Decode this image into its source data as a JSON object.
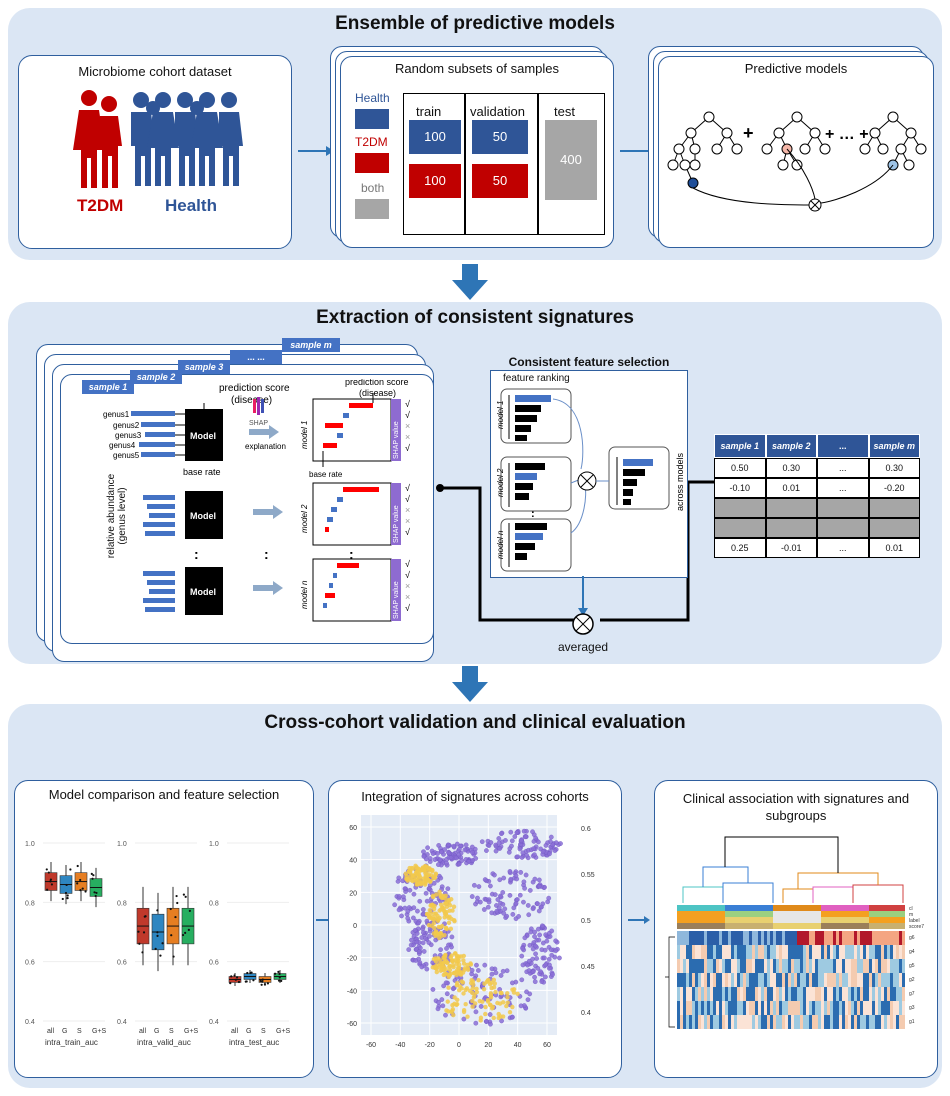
{
  "panel1": {
    "title": "Ensemble of predictive models",
    "dataset_title": "Microbiome cohort dataset",
    "t2dm_label": "T2DM",
    "health_label": "Health",
    "subsets_title": "Random subsets of samples",
    "legend": {
      "health": "Health",
      "t2dm": "T2DM",
      "both": "both"
    },
    "cols": {
      "train": "train",
      "validation": "validation",
      "test": "test"
    },
    "values": {
      "train_health": "100",
      "valid_health": "50",
      "train_t2dm": "100",
      "valid_t2dm": "50",
      "test": "400"
    },
    "models_title": "Predictive models",
    "plus": "+",
    "dots": "+ … +",
    "colors": {
      "t2dm": "#c00000",
      "health": "#2f5597",
      "grey": "#a6a6a6",
      "arrow": "#2e75b6"
    }
  },
  "panel2": {
    "title": "Extraction of consistent signatures",
    "tabs": [
      "sample 1",
      "sample 2",
      "sample 3",
      "... ...",
      "sample m"
    ],
    "y_label_1": "relative abundance",
    "y_label_2": "(genus level)",
    "genera": [
      "genus1",
      "genus2",
      "genus3",
      "genus4",
      "genus5"
    ],
    "base_rate": "base rate",
    "model": "Model",
    "pred_score": "prediction score",
    "disease": "(disease)",
    "shap": "SHAP",
    "explanation": "explanation",
    "model_rows": [
      "model 1",
      "model 2",
      "model n"
    ],
    "shap_value": "SHAP value",
    "marks": [
      "√",
      "√",
      "×",
      "×",
      "√"
    ],
    "vdots": ":",
    "cfs_title": "Consistent feature selection",
    "feature_ranking": "feature ranking",
    "across_models": "across models",
    "averaged": "averaged",
    "table": {
      "headers": [
        "sample 1",
        "sample 2",
        "...",
        "sample m"
      ],
      "rows": [
        [
          "0.50",
          "0.30",
          "...",
          "0.30"
        ],
        [
          "-0.10",
          "0.01",
          "...",
          "-0.20"
        ],
        [
          "",
          "",
          "",
          ""
        ],
        [
          "",
          "",
          "",
          ""
        ],
        [
          "0.25",
          "-0.01",
          "...",
          "0.01"
        ]
      ]
    }
  },
  "panel3": {
    "title": "Cross-cohort validation and clinical evaluation",
    "card1_title": "Model comparison and feature selection",
    "card2_title": "Integration of signatures across cohorts",
    "card3_title_1": "Clinical association with signatures and",
    "card3_title_2": "subgroups",
    "box_yticks": [
      "1.0",
      "0.8",
      "0.6",
      "0.4"
    ],
    "box_cats": [
      "all",
      "G",
      "S",
      "G+S"
    ],
    "box_xlabels": [
      "intra_train_auc",
      "intra_valid_auc",
      "intra_test_auc"
    ],
    "box_medians": [
      [
        0.87,
        0.86,
        0.87,
        0.85
      ],
      [
        0.72,
        0.7,
        0.72,
        0.72
      ],
      [
        0.54,
        0.55,
        0.54,
        0.55
      ]
    ],
    "box_colors": [
      "#c0392b",
      "#2e86c1",
      "#e67e22",
      "#27ae60"
    ],
    "scatter_yticks": [
      "60",
      "40",
      "20",
      "0",
      "-20",
      "-40",
      "-60"
    ],
    "scatter_xticks": [
      "-60",
      "-40",
      "-20",
      "0",
      "20",
      "40",
      "60"
    ],
    "colorbar_ticks": [
      "0.6",
      "0.55",
      "0.5",
      "0.45",
      "0.4"
    ],
    "heat_rows": [
      "cl",
      "m",
      "label",
      "score7",
      "g6",
      "g4",
      "g5",
      "g2",
      "g7",
      "g3",
      "g1"
    ]
  }
}
